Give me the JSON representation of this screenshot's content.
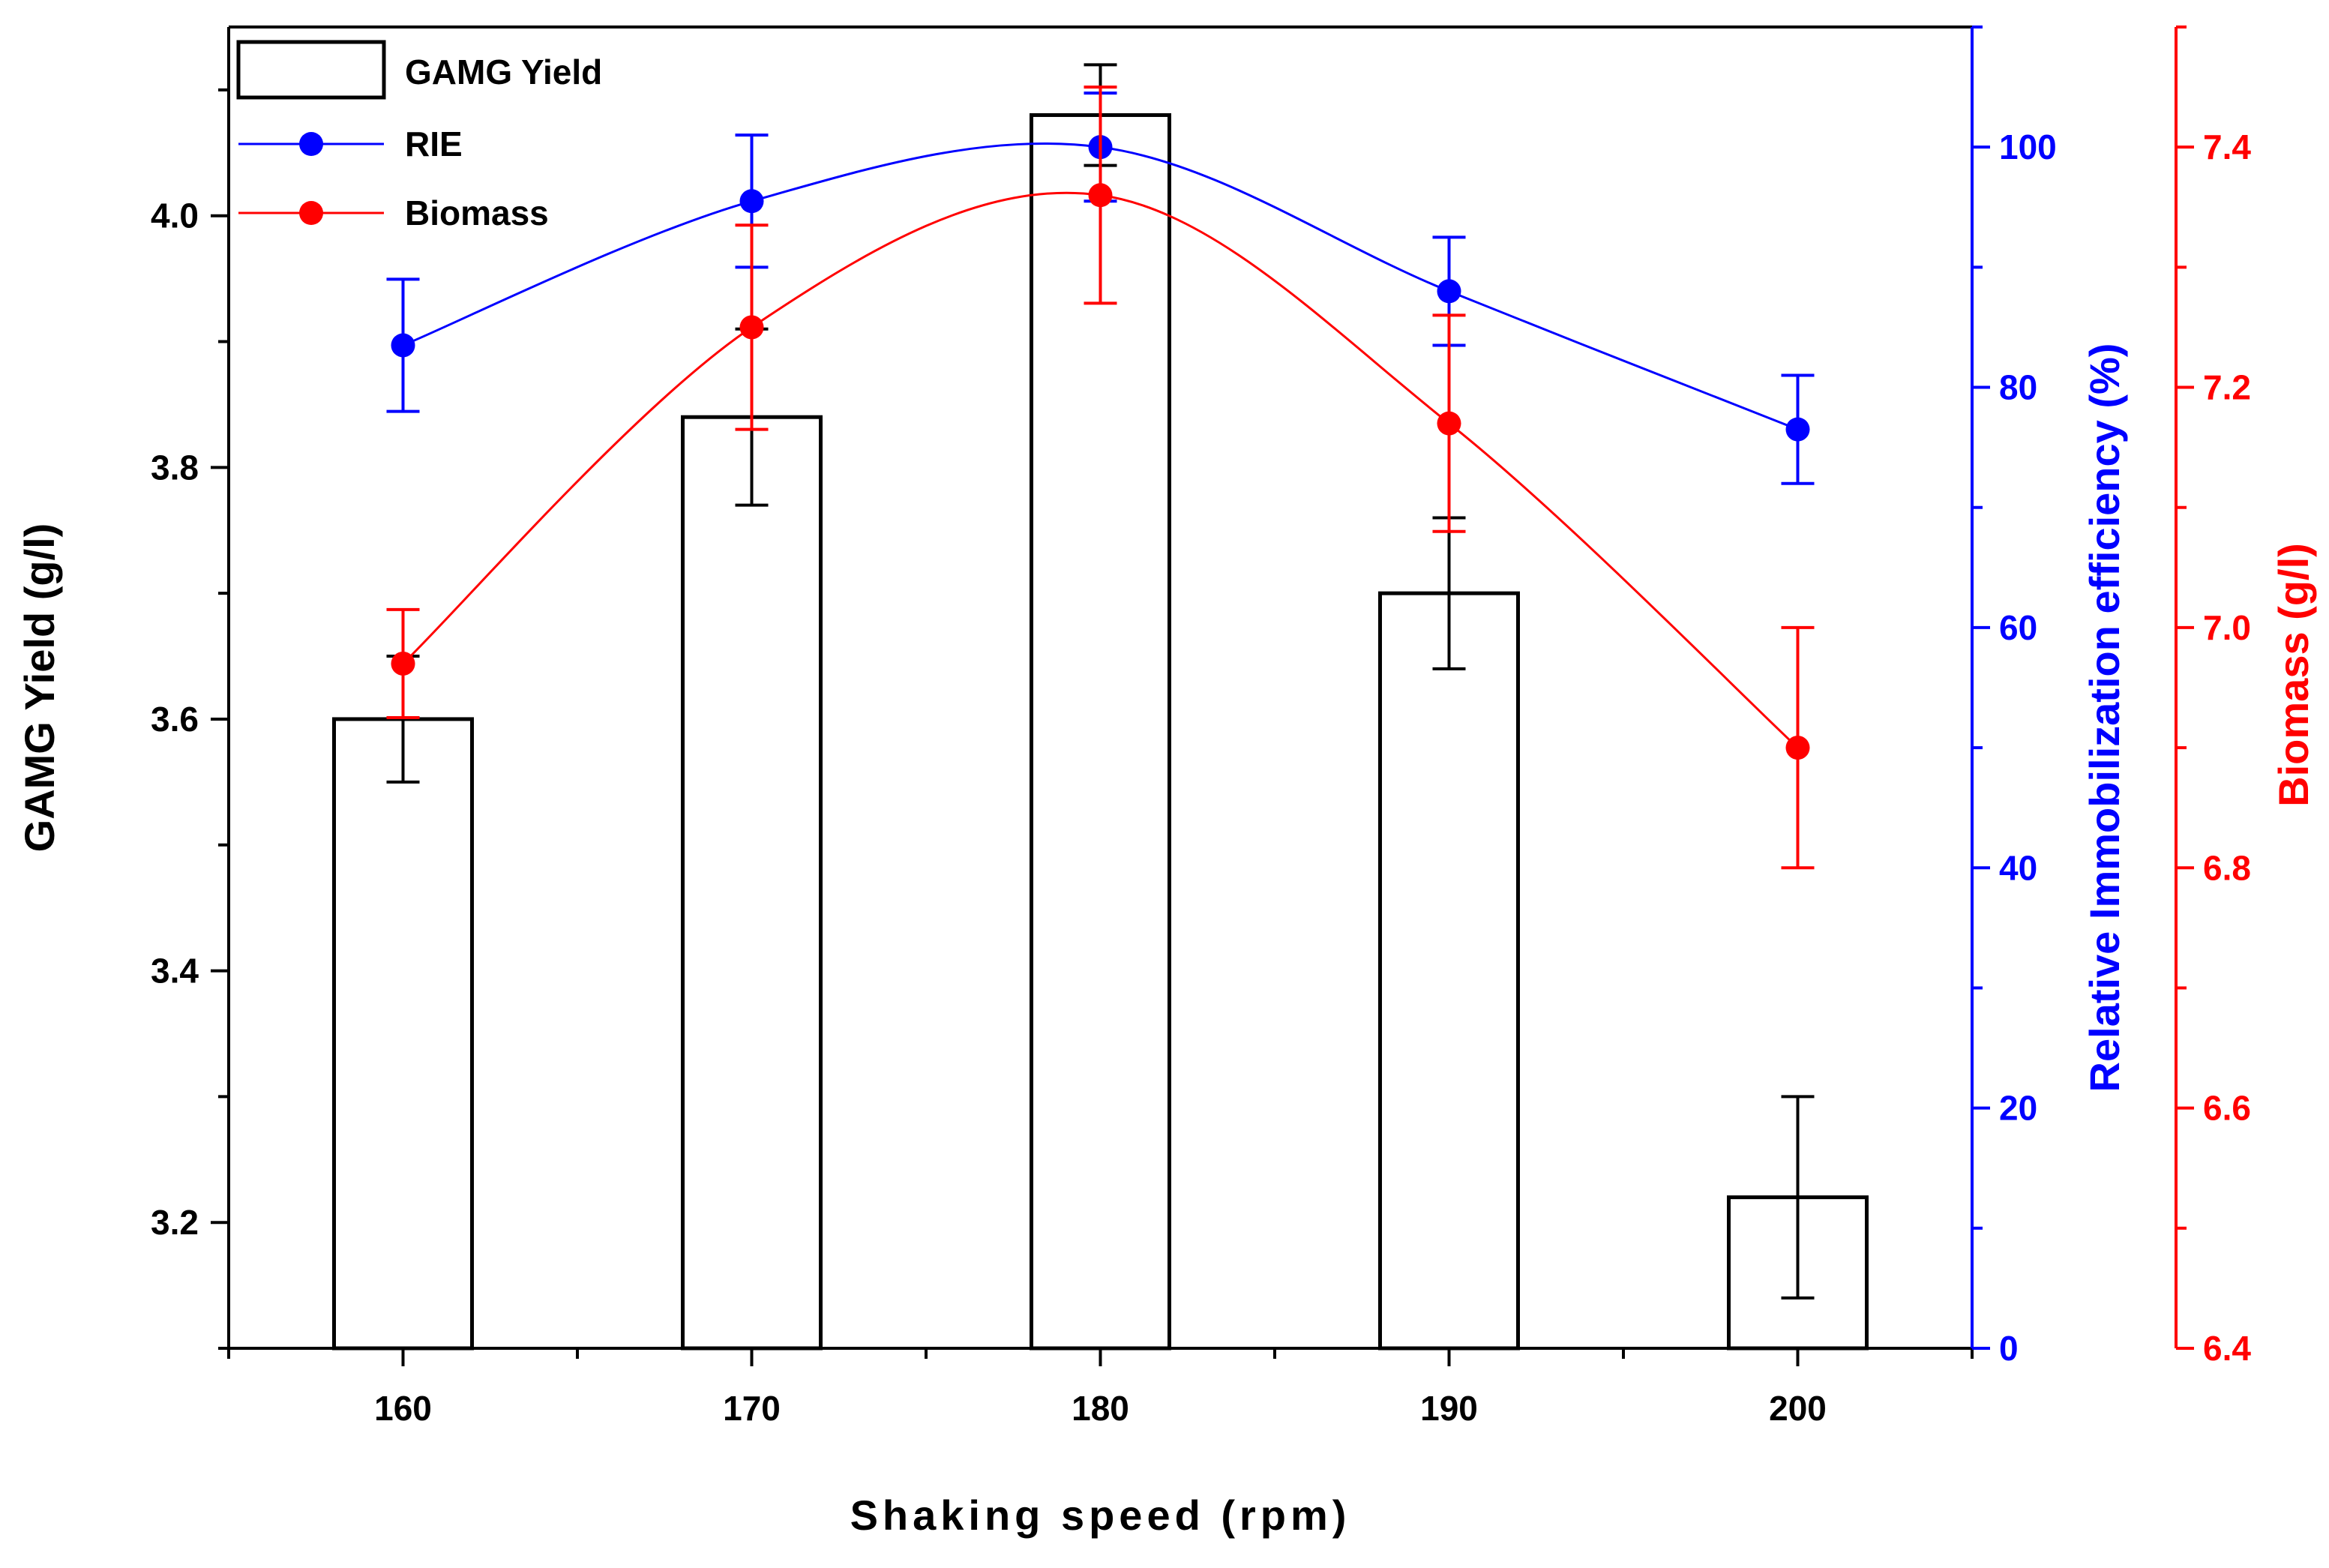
{
  "chart_data": {
    "type": "bar",
    "xlabel": "Shaking speed (rpm)",
    "ylabel_left": "GAMG Yield (g/l)",
    "ylabel_right_1": "Relative Immobilization efficiency (%)",
    "ylabel_right_2": "Biomass (g/l)",
    "x_range": [
      155,
      205
    ],
    "x_ticks": [
      160,
      170,
      180,
      190,
      200
    ],
    "x_tick_labels": [
      "160",
      "170",
      "180",
      "190",
      "200"
    ],
    "y_left_range": [
      3.1,
      4.15
    ],
    "y_left_ticks": [
      3.2,
      3.4,
      3.6,
      3.8,
      4.0
    ],
    "y_left_tick_labels": [
      "3.2",
      "3.4",
      "3.6",
      "3.8",
      "4.0"
    ],
    "y_rie_range": [
      0,
      110
    ],
    "y_rie_ticks": [
      0,
      20,
      40,
      60,
      80,
      100
    ],
    "y_rie_tick_labels": [
      "0",
      "20",
      "40",
      "60",
      "80",
      "100"
    ],
    "y_bio_range": [
      6.4,
      7.5
    ],
    "y_bio_ticks": [
      6.4,
      6.6,
      6.8,
      7.0,
      7.2,
      7.4
    ],
    "y_bio_tick_labels": [
      "6.4",
      "6.6",
      "6.8",
      "7.0",
      "7.2",
      "7.4"
    ],
    "x": [
      160,
      170,
      180,
      190,
      200
    ],
    "series": [
      {
        "name": "GAMG Yield",
        "kind": "bar",
        "axis": "left",
        "color": "#000000",
        "values": [
          3.6,
          3.84,
          4.08,
          3.7,
          3.22
        ],
        "errors": [
          0.05,
          0.07,
          0.04,
          0.06,
          0.08
        ]
      },
      {
        "name": "RIE",
        "kind": "line",
        "axis": "rie",
        "color": "#0000ff",
        "values": [
          83.5,
          95.5,
          100.0,
          88.0,
          76.5
        ],
        "errors": [
          5.5,
          5.5,
          4.5,
          4.5,
          4.5
        ]
      },
      {
        "name": "Biomass",
        "kind": "line",
        "axis": "biomass",
        "color": "#ff0000",
        "values": [
          6.97,
          7.25,
          7.36,
          7.17,
          6.9
        ],
        "errors": [
          0.045,
          0.085,
          0.09,
          0.09,
          0.1
        ]
      }
    ],
    "legend_position": "top-left",
    "grid": false
  }
}
